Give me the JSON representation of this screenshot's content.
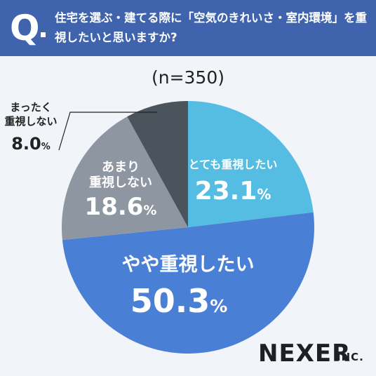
{
  "header": {
    "q_mark": "Q",
    "question": "住宅を選ぶ・建てる際に「空気のきれいさ・室内環境」を重視したいと思いますか?"
  },
  "chart_data": {
    "type": "pie",
    "n_label": "(n=350)",
    "slices": [
      {
        "label": "とても重視したい",
        "value": 23.1,
        "value_text": "23.1",
        "unit": "%",
        "color": "#56bde2",
        "text_color": "#ffffff"
      },
      {
        "label": "やや重視したい",
        "value": 50.3,
        "value_text": "50.3",
        "unit": "%",
        "color": "#4a7fd6",
        "text_color": "#ffffff"
      },
      {
        "label_lines": [
          "あまり",
          "重視しない"
        ],
        "value": 18.6,
        "value_text": "18.6",
        "unit": "%",
        "color": "#8e96a2",
        "text_color": "#ffffff"
      },
      {
        "label_lines": [
          "まったく",
          "重視しない"
        ],
        "value": 8.0,
        "value_text": "8.0",
        "unit": "%",
        "color": "#4b535d",
        "text_color": "#222222"
      }
    ]
  },
  "brand": {
    "name": "NEXER",
    "suffix": "INC."
  }
}
